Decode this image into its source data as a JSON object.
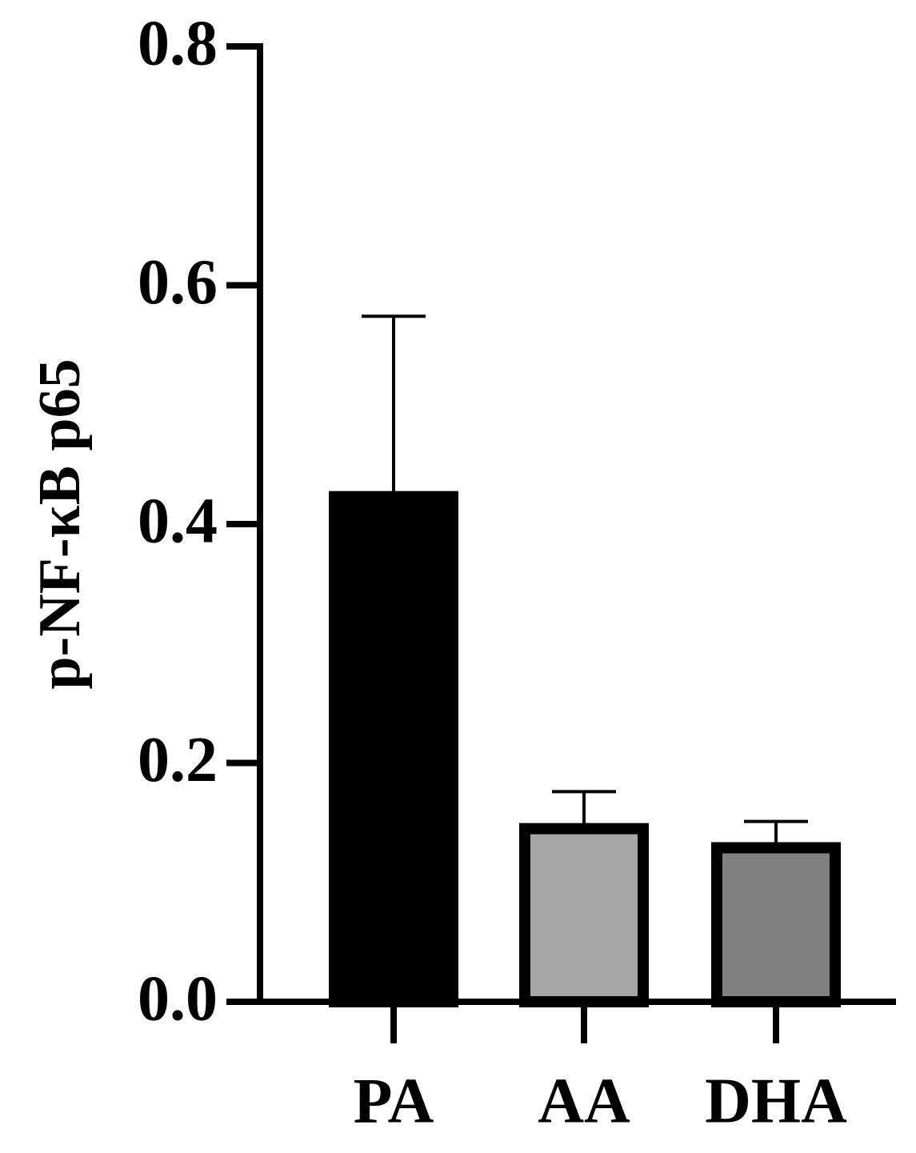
{
  "chart_data": {
    "type": "bar",
    "y_label": "p-NF-κB p65",
    "categories": [
      "PA",
      "AA",
      "DHA"
    ],
    "values": [
      0.427,
      0.149,
      0.133
    ],
    "errors": [
      0.147,
      0.027,
      0.018
    ],
    "colors": [
      "#000000",
      "#a6a6a6",
      "#808080"
    ],
    "ylim": [
      0,
      0.8
    ],
    "yticks": [
      {
        "value": 0,
        "label": "0.0"
      },
      0.2,
      0.4,
      0.6,
      0.8
    ],
    "grid": false
  }
}
